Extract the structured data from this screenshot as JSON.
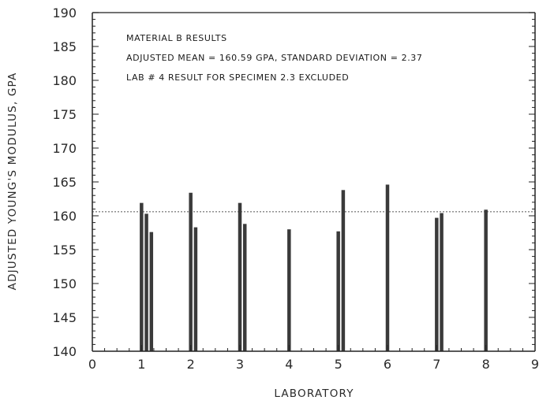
{
  "chart_data": {
    "type": "bar",
    "xlabel": "LABORATORY",
    "ylabel": "ADJUSTED YOUNG'S MODULUS, GPA",
    "xlim": [
      0,
      9
    ],
    "ylim": [
      140,
      190
    ],
    "x_ticks": [
      "0",
      "1",
      "2",
      "3",
      "4",
      "5",
      "6",
      "7",
      "8",
      "9"
    ],
    "y_ticks": [
      "140",
      "145",
      "150",
      "155",
      "160",
      "165",
      "170",
      "175",
      "180",
      "185",
      "190"
    ],
    "annotations": [
      "MATERIAL B RESULTS",
      "ADJUSTED MEAN = 160.59 GPA,  STANDARD DEVIATION = 2.37",
      "LAB # 4 RESULT FOR SPECIMEN 2.3 EXCLUDED"
    ],
    "mean_line": 160.59,
    "bar_color": "#3a3a3a",
    "mean_line_color": "#555555",
    "grid": false,
    "bars": [
      {
        "lab": 1,
        "x": 1.0,
        "value": 161.9
      },
      {
        "lab": 1,
        "x": 1.1,
        "value": 160.3
      },
      {
        "lab": 1,
        "x": 1.2,
        "value": 157.6
      },
      {
        "lab": 2,
        "x": 2.0,
        "value": 163.4
      },
      {
        "lab": 2,
        "x": 2.1,
        "value": 158.3
      },
      {
        "lab": 3,
        "x": 3.0,
        "value": 161.9
      },
      {
        "lab": 3,
        "x": 3.1,
        "value": 158.8
      },
      {
        "lab": 4,
        "x": 4.0,
        "value": 158.0
      },
      {
        "lab": 5,
        "x": 5.0,
        "value": 157.7
      },
      {
        "lab": 5,
        "x": 5.1,
        "value": 163.8
      },
      {
        "lab": 6,
        "x": 6.0,
        "value": 164.6
      },
      {
        "lab": 7,
        "x": 7.0,
        "value": 159.7
      },
      {
        "lab": 7,
        "x": 7.1,
        "value": 160.4
      },
      {
        "lab": 8,
        "x": 8.0,
        "value": 160.9
      }
    ]
  }
}
